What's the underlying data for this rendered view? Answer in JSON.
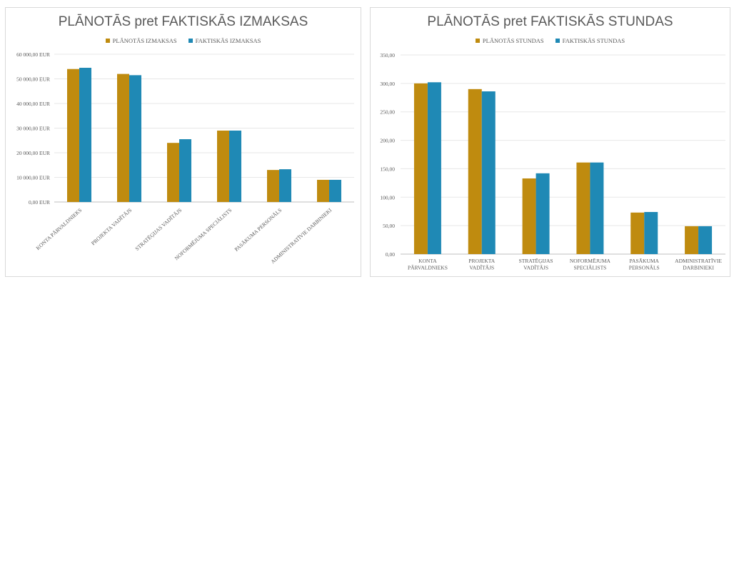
{
  "colors": {
    "planned": "#bf8b0f",
    "actual": "#1f89b5",
    "grid": "#e7e7e7",
    "axis": "#bfbfbf"
  },
  "chart_data": [
    {
      "type": "bar",
      "title": "PLĀNOTĀS pret FAKTISKĀS IZMAKSAS",
      "legend_position": "top",
      "grid": true,
      "categories": [
        "KONTA PĀRVALDNIEKS",
        "PROJEKTA VADĪTĀJS",
        "STRATĒĢIJAS VADĪTĀJS",
        "NOFORMĒJUMA SPECIĀLISTS",
        "PASĀKUMA PERSONĀLS",
        "ADMINISTRATĪVIE DARBINIEKI"
      ],
      "category_label_style": "rotated",
      "series": [
        {
          "name": "PLĀNOTĀS IZMAKSAS",
          "color": "#bf8b0f",
          "values": [
            54000,
            52000,
            24000,
            29000,
            13000,
            9000
          ]
        },
        {
          "name": "FAKTISKĀS IZMAKSAS",
          "color": "#1f89b5",
          "values": [
            54500,
            51500,
            25500,
            29000,
            13300,
            9000
          ]
        }
      ],
      "ylim": [
        0,
        60000
      ],
      "yticks": [
        0,
        10000,
        20000,
        30000,
        40000,
        50000,
        60000
      ],
      "ytick_labels": [
        "0,00 EUR",
        "10 000,00 EUR",
        "20 000,00 EUR",
        "30 000,00 EUR",
        "40 000,00 EUR",
        "50 000,00 EUR",
        "60 000,00 EUR"
      ]
    },
    {
      "type": "bar",
      "title": "PLĀNOTĀS pret FAKTISKĀS STUNDAS",
      "legend_position": "top",
      "grid": true,
      "categories": [
        "KONTA PĀRVALDNIEKS",
        "PROJEKTA VADĪTĀJS",
        "STRATĒĢIJAS VADĪTĀJS",
        "NOFORMĒJUMA SPECIĀLISTS",
        "PASĀKUMA PERSONĀLS",
        "ADMINISTRATĪVIE DARBINIEKI"
      ],
      "category_label_style": "wrapped",
      "series": [
        {
          "name": "PLĀNOTĀS STUNDAS",
          "color": "#bf8b0f",
          "values": [
            300,
            290,
            133,
            161,
            73,
            49
          ]
        },
        {
          "name": "FAKTISKĀS STUNDAS",
          "color": "#1f89b5",
          "values": [
            302,
            286,
            142,
            161,
            74,
            49
          ]
        }
      ],
      "ylim": [
        0,
        350
      ],
      "yticks": [
        0,
        50,
        100,
        150,
        200,
        250,
        300,
        350
      ],
      "ytick_labels": [
        "0,00",
        "50,00",
        "100,00",
        "150,00",
        "200,00",
        "250,00",
        "300,00",
        "350,00"
      ]
    }
  ]
}
